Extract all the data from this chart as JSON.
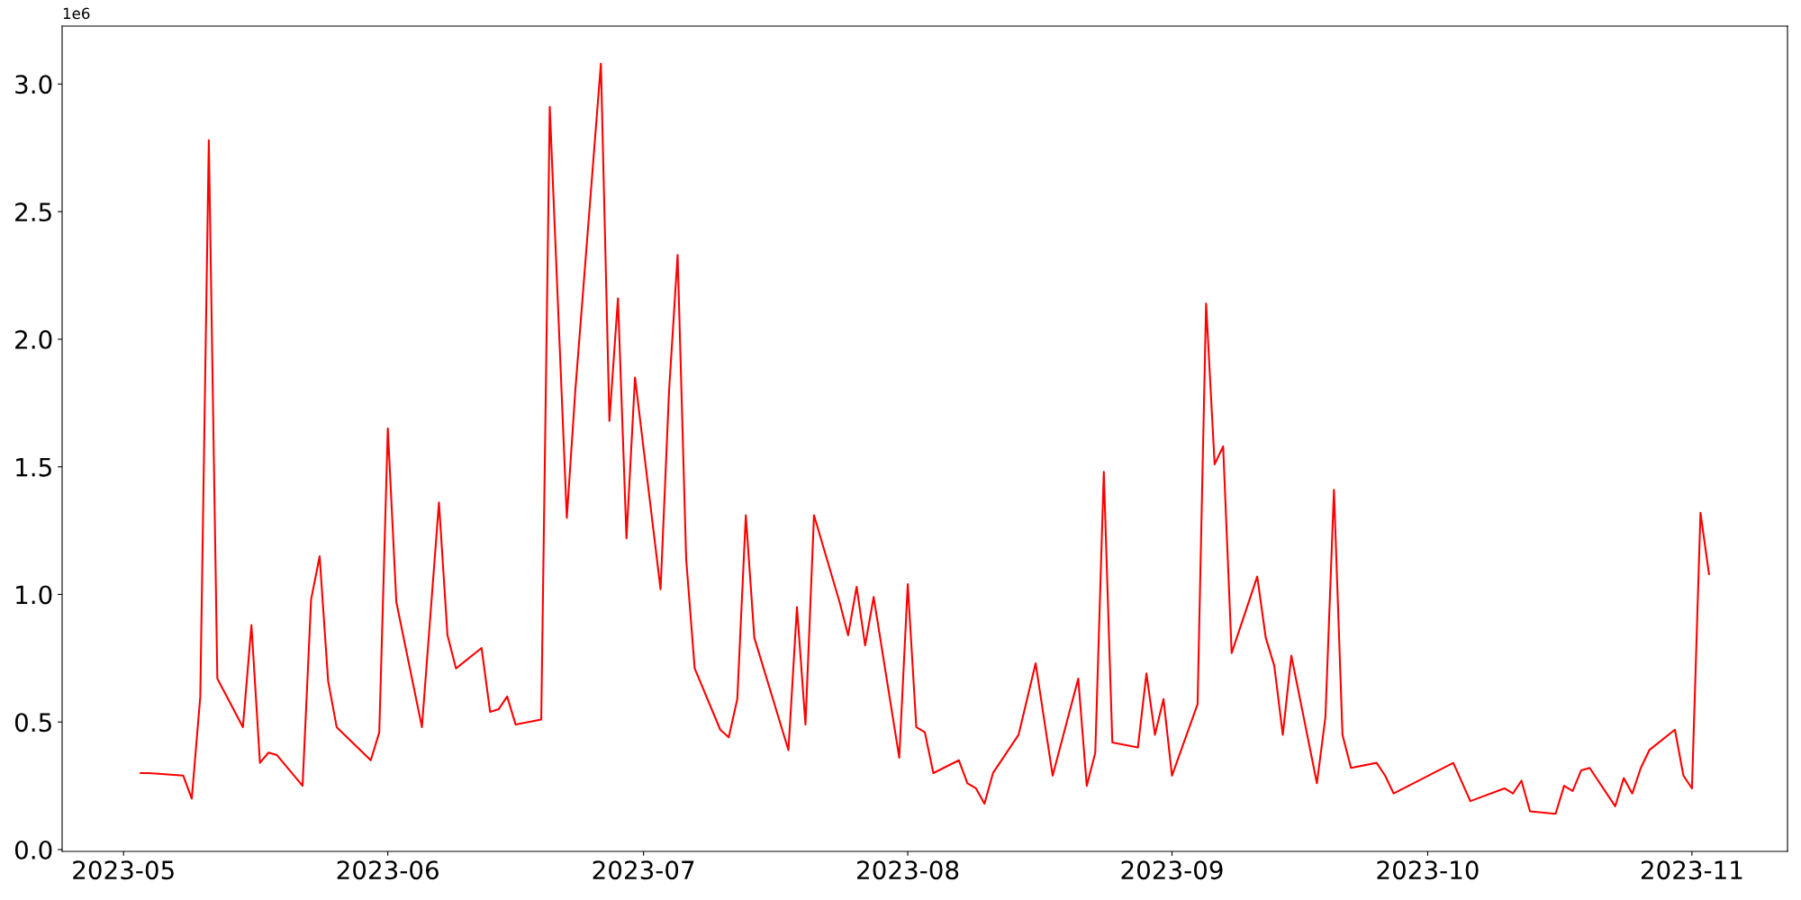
{
  "chart_data": {
    "type": "line",
    "x": [
      "2023-05-03",
      "2023-05-04",
      "2023-05-08",
      "2023-05-09",
      "2023-05-10",
      "2023-05-11",
      "2023-05-12",
      "2023-05-15",
      "2023-05-16",
      "2023-05-17",
      "2023-05-18",
      "2023-05-19",
      "2023-05-22",
      "2023-05-23",
      "2023-05-24",
      "2023-05-25",
      "2023-05-26",
      "2023-05-30",
      "2023-05-31",
      "2023-06-01",
      "2023-06-02",
      "2023-06-05",
      "2023-06-07",
      "2023-06-08",
      "2023-06-09",
      "2023-06-12",
      "2023-06-13",
      "2023-06-14",
      "2023-06-15",
      "2023-06-16",
      "2023-06-19",
      "2023-06-20",
      "2023-06-22",
      "2023-06-23",
      "2023-06-26",
      "2023-06-27",
      "2023-06-28",
      "2023-06-29",
      "2023-06-30",
      "2023-07-03",
      "2023-07-04",
      "2023-07-05",
      "2023-07-06",
      "2023-07-07",
      "2023-07-10",
      "2023-07-11",
      "2023-07-12",
      "2023-07-13",
      "2023-07-14",
      "2023-07-17",
      "2023-07-18",
      "2023-07-19",
      "2023-07-20",
      "2023-07-21",
      "2023-07-24",
      "2023-07-25",
      "2023-07-26",
      "2023-07-27",
      "2023-07-28",
      "2023-07-31",
      "2023-08-01",
      "2023-08-02",
      "2023-08-03",
      "2023-08-04",
      "2023-08-07",
      "2023-08-08",
      "2023-08-09",
      "2023-08-10",
      "2023-08-11",
      "2023-08-14",
      "2023-08-16",
      "2023-08-18",
      "2023-08-21",
      "2023-08-22",
      "2023-08-23",
      "2023-08-24",
      "2023-08-25",
      "2023-08-28",
      "2023-08-29",
      "2023-08-30",
      "2023-08-31",
      "2023-09-01",
      "2023-09-04",
      "2023-09-05",
      "2023-09-06",
      "2023-09-07",
      "2023-09-08",
      "2023-09-11",
      "2023-09-12",
      "2023-09-13",
      "2023-09-14",
      "2023-09-15",
      "2023-09-18",
      "2023-09-19",
      "2023-09-20",
      "2023-09-21",
      "2023-09-22",
      "2023-09-25",
      "2023-09-26",
      "2023-09-27",
      "2023-10-04",
      "2023-10-06",
      "2023-10-10",
      "2023-10-11",
      "2023-10-12",
      "2023-10-13",
      "2023-10-16",
      "2023-10-17",
      "2023-10-18",
      "2023-10-19",
      "2023-10-20",
      "2023-10-23",
      "2023-10-24",
      "2023-10-25",
      "2023-10-26",
      "2023-10-27",
      "2023-10-30",
      "2023-10-31",
      "2023-11-01",
      "2023-11-02",
      "2023-11-03"
    ],
    "series": [
      {
        "color": "#ff0000",
        "values": [
          0.3,
          0.3,
          0.29,
          0.2,
          0.6,
          2.78,
          0.67,
          0.48,
          0.88,
          0.34,
          0.38,
          0.37,
          0.25,
          0.98,
          1.15,
          0.66,
          0.48,
          0.35,
          0.46,
          1.65,
          0.97,
          0.48,
          1.36,
          0.84,
          0.71,
          0.79,
          0.54,
          0.55,
          0.6,
          0.49,
          0.51,
          2.91,
          1.3,
          1.8,
          3.08,
          1.68,
          2.16,
          1.22,
          1.85,
          1.02,
          1.8,
          2.33,
          1.14,
          0.71,
          0.47,
          0.44,
          0.59,
          1.31,
          0.83,
          0.5,
          0.39,
          0.95,
          0.49,
          1.31,
          0.97,
          0.84,
          1.03,
          0.8,
          0.99,
          0.36,
          1.04,
          0.48,
          0.46,
          0.3,
          0.35,
          0.26,
          0.24,
          0.18,
          0.3,
          0.45,
          0.73,
          0.29,
          0.67,
          0.25,
          0.38,
          1.48,
          0.42,
          0.4,
          0.69,
          0.45,
          0.59,
          0.29,
          0.57,
          2.14,
          1.51,
          1.58,
          0.77,
          1.07,
          0.83,
          0.72,
          0.45,
          0.76,
          0.26,
          0.52,
          1.41,
          0.45,
          0.32,
          0.34,
          0.29,
          0.22,
          0.34,
          0.19,
          0.24,
          0.22,
          0.27,
          0.15,
          0.14,
          0.25,
          0.23,
          0.31,
          0.32,
          0.17,
          0.28,
          0.22,
          0.32,
          0.39,
          0.47,
          0.29,
          0.24,
          1.32,
          1.08
        ]
      }
    ],
    "xlim": [
      "2023-04-23T19:00",
      "2023-11-12T05:00"
    ],
    "xticks": [
      {
        "value": "2023-05-01",
        "label": "2023-05"
      },
      {
        "value": "2023-06-01",
        "label": "2023-06"
      },
      {
        "value": "2023-07-01",
        "label": "2023-07"
      },
      {
        "value": "2023-08-01",
        "label": "2023-08"
      },
      {
        "value": "2023-09-01",
        "label": "2023-09"
      },
      {
        "value": "2023-10-01",
        "label": "2023-10"
      },
      {
        "value": "2023-11-01",
        "label": "2023-11"
      }
    ],
    "ylim": [
      -0.007,
      3.227
    ],
    "yticks": [
      {
        "value": 0,
        "label": "0.0"
      },
      0.5,
      {
        "value": 1,
        "label": "1.0"
      },
      1.5,
      {
        "value": 2,
        "label": "2.0"
      },
      2.5,
      {
        "value": 3,
        "label": "3.0"
      }
    ],
    "annotations": [
      "1e6"
    ],
    "grid": false,
    "legend": false,
    "marker": "none",
    "line_style": "solid"
  }
}
